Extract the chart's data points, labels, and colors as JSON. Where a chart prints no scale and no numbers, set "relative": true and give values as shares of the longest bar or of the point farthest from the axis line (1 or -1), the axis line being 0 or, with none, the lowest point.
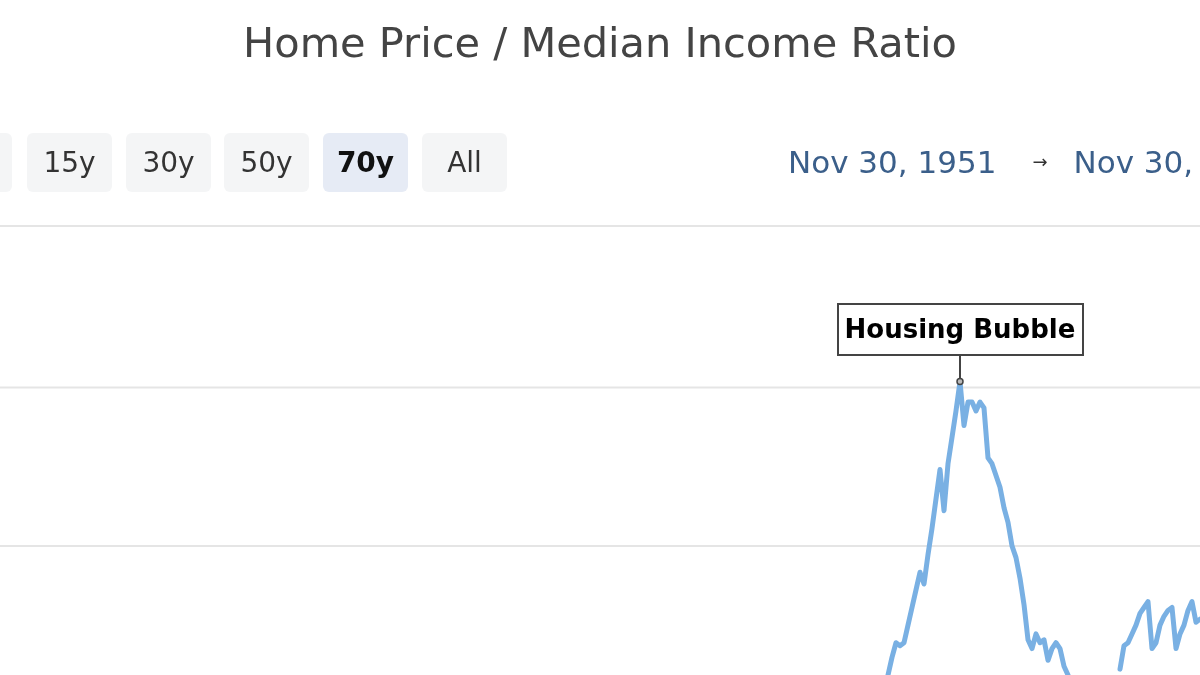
{
  "chart_data": {
    "type": "line",
    "title": "Home Price / Median Income Ratio",
    "annotations": [
      "15y",
      "30y",
      "50y",
      "70y",
      "All",
      "Nov 30, 1951",
      "→",
      "Nov 30,",
      "Housing Bubble"
    ],
    "relative": true,
    "ref_lines": [
      {
        "axis": "y",
        "value": 0.44,
        "color": "#e5e5e5"
      },
      {
        "axis": "y",
        "value": 0.98,
        "color": "#e5e5e5"
      },
      {
        "axis": "y",
        "value": 1.53,
        "color": "#e5e5e5"
      }
    ],
    "categories": [
      null,
      null,
      null,
      null,
      null,
      null,
      null,
      null,
      null,
      null,
      null,
      null,
      null,
      null,
      null,
      null,
      null,
      null,
      null,
      null,
      null,
      null,
      null,
      null,
      null,
      null,
      null,
      null,
      null,
      null,
      null,
      null,
      null,
      null,
      null,
      null,
      null,
      null,
      null,
      null,
      null,
      null,
      null,
      null,
      null,
      null,
      null,
      null,
      null,
      null,
      null,
      null,
      null,
      null,
      null,
      null,
      null,
      null,
      null,
      null,
      null,
      null,
      null,
      null,
      null,
      null,
      null,
      null,
      null,
      null,
      null,
      null,
      null,
      null,
      null,
      null,
      null,
      null,
      null,
      null,
      null,
      null,
      null,
      null,
      null,
      null,
      null,
      null,
      null,
      null,
      null,
      null,
      null,
      null,
      null,
      null,
      null,
      null,
      null,
      null,
      null,
      null,
      null,
      null,
      null,
      null,
      null,
      null,
      null,
      null,
      null,
      null,
      null,
      null,
      null,
      null,
      null,
      null,
      null,
      null,
      null,
      null,
      null,
      null,
      null,
      null,
      null,
      null,
      null,
      null,
      null,
      null,
      null,
      null,
      null,
      null,
      null,
      null,
      null,
      null,
      null,
      null,
      null,
      null,
      null,
      null,
      null,
      null,
      null,
      null,
      null,
      null,
      null,
      null,
      null,
      null,
      null,
      null,
      null,
      null,
      null,
      null,
      null,
      null,
      null,
      null,
      null,
      null,
      null,
      null,
      null,
      null,
      null,
      null,
      null,
      null,
      null,
      null,
      null,
      null,
      null,
      null,
      null,
      null,
      null,
      null,
      null,
      null,
      null,
      null,
      null,
      null,
      null,
      null,
      null,
      null,
      null,
      null,
      null,
      null,
      null,
      null,
      null,
      null,
      null,
      null,
      null,
      null,
      null,
      null,
      null,
      null,
      null,
      null,
      null,
      null,
      null,
      null,
      null,
      null,
      null,
      null,
      null,
      null,
      null,
      null,
      null,
      null,
      null,
      null,
      null,
      null,
      null,
      null,
      null,
      null,
      null,
      null,
      null,
      null,
      null,
      null,
      null,
      null,
      null,
      null,
      null,
      null,
      null,
      null,
      null,
      null,
      null,
      null,
      null,
      null,
      null,
      null,
      null,
      null,
      null,
      null,
      null,
      null,
      null,
      null,
      null,
      null,
      null,
      null,
      null,
      null,
      null,
      null,
      null,
      null,
      null,
      null,
      null,
      null,
      null,
      null,
      null,
      null,
      null,
      null,
      null,
      null,
      null,
      null,
      null,
      null,
      null,
      null,
      null,
      null,
      null,
      null,
      null,
      null,
      null
    ],
    "series": [
      {
        "color": "#79b0e3",
        "values": [
          null,
          null,
          null,
          null,
          null,
          null,
          null,
          null,
          null,
          null,
          null,
          null,
          null,
          null,
          null,
          null,
          null,
          null,
          null,
          null,
          null,
          null,
          null,
          null,
          null,
          null,
          null,
          null,
          null,
          null,
          null,
          null,
          null,
          null,
          null,
          null,
          null,
          null,
          null,
          null,
          null,
          null,
          null,
          null,
          null,
          null,
          null,
          null,
          null,
          null,
          null,
          null,
          null,
          null,
          null,
          null,
          null,
          null,
          null,
          null,
          null,
          null,
          null,
          null,
          null,
          null,
          null,
          null,
          null,
          null,
          null,
          null,
          null,
          null,
          null,
          null,
          null,
          null,
          null,
          null,
          null,
          null,
          null,
          null,
          null,
          null,
          null,
          null,
          null,
          null,
          null,
          null,
          null,
          null,
          null,
          null,
          null,
          null,
          null,
          null,
          null,
          null,
          null,
          null,
          null,
          null,
          null,
          null,
          null,
          null,
          null,
          null,
          null,
          null,
          null,
          null,
          null,
          null,
          null,
          null,
          null,
          null,
          null,
          null,
          null,
          null,
          null,
          null,
          null,
          null,
          null,
          null,
          null,
          null,
          null,
          null,
          null,
          null,
          null,
          null,
          null,
          null,
          null,
          null,
          null,
          null,
          null,
          null,
          null,
          null,
          null,
          null,
          null,
          null,
          null,
          null,
          null,
          null,
          null,
          null,
          null,
          null,
          null,
          null,
          null,
          null,
          null,
          null,
          null,
          null,
          null,
          null,
          null,
          null,
          null,
          null,
          null,
          null,
          null,
          null,
          null,
          null,
          null,
          null,
          null,
          null,
          null,
          null,
          null,
          null,
          null,
          null,
          null,
          null,
          null,
          null,
          null,
          null,
          null,
          null,
          null,
          null,
          null,
          null,
          null,
          null,
          null,
          null,
          null,
          null,
          null,
          null,
          null,
          null,
          null,
          null,
          null,
          null,
          null,
          null,
          null,
          null,
          0,
          0.06,
          0.11,
          0.1,
          0.11,
          0.17,
          0.23,
          0.29,
          0.35,
          0.31,
          0.41,
          0.5,
          0.6,
          0.7,
          0.56,
          0.72,
          0.81,
          0.9,
          1,
          0.85,
          0.93,
          0.93,
          0.9,
          0.93,
          0.91,
          0.74,
          0.72,
          0.68,
          0.64,
          0.57,
          0.52,
          0.44,
          0.4,
          0.33,
          0.24,
          0.12,
          0.09,
          0.14,
          0.11,
          0.12,
          0.05,
          0.09,
          0.11,
          0.09,
          0.03,
          0,
          null,
          null,
          null,
          null,
          null,
          null,
          null,
          null,
          null,
          null,
          null,
          null,
          null,
          null,
          null,
          null,
          null,
          null,
          null,
          null,
          null,
          null,
          null,
          null,
          null,
          null,
          null,
          null,
          null,
          null,
          null,
          null,
          null
        ]
      },
      {
        "color": "#79b0e3",
        "values": [
          null,
          null,
          null,
          null,
          null,
          null,
          null,
          null,
          null,
          null,
          null,
          null,
          null,
          null,
          null,
          null,
          null,
          null,
          null,
          null,
          null,
          null,
          null,
          null,
          null,
          null,
          null,
          null,
          null,
          null,
          null,
          null,
          null,
          null,
          null,
          null,
          null,
          null,
          null,
          null,
          null,
          null,
          null,
          null,
          null,
          null,
          null,
          null,
          null,
          null,
          null,
          null,
          null,
          null,
          null,
          null,
          null,
          null,
          null,
          null,
          null,
          null,
          null,
          null,
          null,
          null,
          null,
          null,
          null,
          null,
          null,
          null,
          null,
          null,
          null,
          null,
          null,
          null,
          null,
          null,
          null,
          null,
          null,
          null,
          null,
          null,
          null,
          null,
          null,
          null,
          null,
          null,
          null,
          null,
          null,
          null,
          null,
          null,
          null,
          null,
          null,
          null,
          null,
          null,
          null,
          null,
          null,
          null,
          null,
          null,
          null,
          null,
          null,
          null,
          null,
          null,
          null,
          null,
          null,
          null,
          null,
          null,
          null,
          null,
          null,
          null,
          null,
          null,
          null,
          null,
          null,
          null,
          null,
          null,
          null,
          null,
          null,
          null,
          null,
          null,
          null,
          null,
          null,
          null,
          null,
          null,
          null,
          null,
          null,
          null,
          null,
          null,
          null,
          null,
          null,
          null,
          null,
          null,
          null,
          null,
          null,
          null,
          null,
          null,
          null,
          null,
          null,
          null,
          null,
          null,
          null,
          null,
          null,
          null,
          null,
          null,
          null,
          null,
          null,
          null,
          null,
          null,
          null,
          null,
          null,
          null,
          null,
          null,
          null,
          null,
          null,
          null,
          null,
          null,
          null,
          null,
          null,
          null,
          null,
          null,
          null,
          null,
          null,
          null,
          null,
          null,
          null,
          null,
          null,
          null,
          null,
          null,
          null,
          null,
          null,
          null,
          null,
          null,
          null,
          null,
          null,
          null,
          null,
          null,
          null,
          null,
          null,
          null,
          null,
          null,
          null,
          null,
          null,
          null,
          null,
          null,
          null,
          null,
          null,
          null,
          null,
          null,
          null,
          null,
          null,
          null,
          null,
          null,
          null,
          null,
          null,
          null,
          null,
          null,
          null,
          null,
          null,
          null,
          null,
          null,
          null,
          null,
          null,
          null,
          null,
          null,
          null,
          null,
          null,
          null,
          null,
          null,
          null,
          null,
          null,
          null,
          null,
          null,
          null,
          null,
          0.02,
          0.1,
          0.11,
          0.14,
          0.17,
          0.21,
          0.23,
          0.25,
          0.09,
          0.11,
          0.17,
          0.2,
          0.22,
          0.23,
          0.09,
          0.14,
          0.17,
          0.22,
          0.25,
          0.18,
          0.19
        ]
      }
    ]
  }
}
